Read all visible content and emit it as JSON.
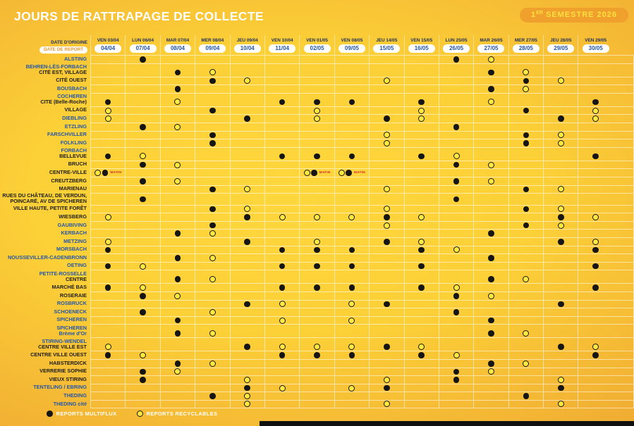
{
  "title": "JOURS DE RATTRAPAGE DE COLLECTE",
  "badge": {
    "prefix": "1",
    "sup": "ER",
    "rest": " SEMESTRE 2026"
  },
  "colors": {
    "blue_label": "#2456a8",
    "navy_header": "#1c2e5e",
    "report_pill_text": "#e8962e",
    "matin_red": "#d7262c",
    "recyclable_yellow": "#ffe93f",
    "multiflux_black": "#151515",
    "badge_bg": "#f0a02c",
    "badge_text": "#ffe03e"
  },
  "table": {
    "origin_label": "DATE D'ORIGINE",
    "report_label": "DATE DE REPORT",
    "matin_label": "MATIN",
    "columns": [
      {
        "day": "VEN 03/04",
        "report": "04/04"
      },
      {
        "day": "LUN 06/04",
        "report": "07/04"
      },
      {
        "day": "MAR 07/04",
        "report": "08/04"
      },
      {
        "day": "MER 08/04",
        "report": "09/04"
      },
      {
        "day": "JEU 09/04",
        "report": "10/04"
      },
      {
        "day": "VEN 10/04",
        "report": "11/04"
      },
      {
        "day": "VEN 01/05",
        "report": "02/05"
      },
      {
        "day": "VEN 08/05",
        "report": "09/05"
      },
      {
        "day": "JEU 14/05",
        "report": "15/05"
      },
      {
        "day": "VEN 15/05",
        "report": "16/05"
      },
      {
        "day": "LUN 25/05",
        "report": "26/05"
      },
      {
        "day": "MAR 26/05",
        "report": "27/05"
      },
      {
        "day": "MER 27/05",
        "report": "28/05"
      },
      {
        "day": "JEU 28/05",
        "report": "29/05"
      },
      {
        "day": "VEN 29/05",
        "report": "30/05"
      }
    ],
    "cell_codes": {
      "M": "report multiflux",
      "R": "report recyclables",
      "P": "recyclables + multiflux, matin"
    },
    "rows": [
      {
        "lines": [
          {
            "t": "ALSTING",
            "c": "blue"
          }
        ],
        "cells": [
          "",
          "M",
          "",
          "",
          "",
          "",
          "",
          "",
          "",
          "",
          "M",
          "R",
          "",
          "",
          ""
        ]
      },
      {
        "lines": [
          {
            "t": "BEHREN-LÈS-FORBACH",
            "c": "blue"
          },
          {
            "t": "CITÉ EST, VILLAGE",
            "c": "black"
          }
        ],
        "h": 19,
        "align": "bottom",
        "cells": [
          "",
          "",
          "M",
          "R",
          "",
          "",
          "",
          "",
          "",
          "",
          "",
          "M",
          "R",
          "",
          ""
        ]
      },
      {
        "lines": [
          {
            "t": "CITÉ OUEST",
            "c": "black"
          }
        ],
        "cells": [
          "",
          "",
          "",
          "M",
          "R",
          "",
          "",
          "",
          "R",
          "",
          "",
          "",
          "M",
          "R",
          ""
        ]
      },
      {
        "lines": [
          {
            "t": "BOUSBACH",
            "c": "blue"
          }
        ],
        "cells": [
          "",
          "",
          "M",
          "",
          "",
          "",
          "",
          "",
          "",
          "",
          "",
          "M",
          "R",
          "",
          ""
        ]
      },
      {
        "lines": [
          {
            "t": "COCHEREN",
            "c": "blue"
          },
          {
            "t": "CITE (Belle-Roche)",
            "c": "black"
          }
        ],
        "h": 19,
        "align": "bottom",
        "cells": [
          "M",
          "",
          "R",
          "",
          "",
          "M",
          "M",
          "M",
          "",
          "M",
          "",
          "R",
          "",
          "",
          "M"
        ]
      },
      {
        "lines": [
          {
            "t": "VILLAGE",
            "c": "black"
          }
        ],
        "cells": [
          "R",
          "",
          "",
          "M",
          "",
          "",
          "R",
          "",
          "",
          "R",
          "",
          "",
          "M",
          "",
          "R"
        ]
      },
      {
        "lines": [
          {
            "t": "DIEBLING",
            "c": "blue"
          }
        ],
        "cells": [
          "R",
          "",
          "",
          "",
          "M",
          "",
          "R",
          "",
          "M",
          "R",
          "",
          "",
          "",
          "M",
          "R"
        ]
      },
      {
        "lines": [
          {
            "t": "ETZLING",
            "c": "blue"
          }
        ],
        "cells": [
          "",
          "M",
          "R",
          "",
          "",
          "",
          "",
          "",
          "",
          "",
          "M",
          "",
          "",
          "",
          ""
        ]
      },
      {
        "lines": [
          {
            "t": "FARSCHVILLER",
            "c": "blue"
          }
        ],
        "cells": [
          "",
          "",
          "",
          "M",
          "",
          "",
          "",
          "",
          "R",
          "",
          "",
          "",
          "M",
          "R",
          ""
        ]
      },
      {
        "lines": [
          {
            "t": "FOLKLING",
            "c": "blue"
          }
        ],
        "cells": [
          "",
          "",
          "",
          "M",
          "",
          "",
          "",
          "",
          "R",
          "",
          "",
          "",
          "M",
          "R",
          ""
        ]
      },
      {
        "lines": [
          {
            "t": "FORBACH",
            "c": "blue"
          },
          {
            "t": "BELLEVUE",
            "c": "black"
          }
        ],
        "h": 19,
        "align": "bottom",
        "cells": [
          "M",
          "R",
          "",
          "",
          "",
          "M",
          "M",
          "M",
          "",
          "M",
          "R",
          "",
          "",
          "",
          "M"
        ]
      },
      {
        "lines": [
          {
            "t": "BRUCH",
            "c": "black"
          }
        ],
        "cells": [
          "",
          "M",
          "R",
          "",
          "",
          "",
          "",
          "",
          "",
          "",
          "M",
          "R",
          "",
          "",
          ""
        ]
      },
      {
        "lines": [
          {
            "t": "CENTRE-VILLE",
            "c": "black"
          }
        ],
        "cells": [
          "P",
          "",
          "",
          "",
          "",
          "",
          "P",
          "P",
          "",
          "",
          "",
          "",
          "",
          "",
          ""
        ]
      },
      {
        "lines": [
          {
            "t": "CREUTZBERG",
            "c": "black"
          }
        ],
        "cells": [
          "",
          "M",
          "R",
          "",
          "",
          "",
          "",
          "",
          "",
          "",
          "M",
          "R",
          "",
          "",
          ""
        ]
      },
      {
        "lines": [
          {
            "t": "MARIENAU",
            "c": "black"
          }
        ],
        "cells": [
          "",
          "",
          "",
          "M",
          "R",
          "",
          "",
          "",
          "R",
          "",
          "",
          "",
          "M",
          "R",
          ""
        ]
      },
      {
        "lines": [
          {
            "t": "RUES DU CHÂTEAU, DE VERDUN,",
            "c": "black"
          },
          {
            "t": "POINCARÉ, AV DE SPICHEREN",
            "c": "black"
          }
        ],
        "h": 16.5,
        "cells": [
          "",
          "M",
          "",
          "",
          "",
          "",
          "",
          "",
          "",
          "",
          "M",
          "",
          "",
          "",
          ""
        ]
      },
      {
        "lines": [
          {
            "t": "VILLE HAUTE, PETITE FORÊT",
            "c": "black"
          }
        ],
        "cells": [
          "",
          "",
          "",
          "M",
          "R",
          "",
          "",
          "",
          "R",
          "",
          "",
          "",
          "M",
          "R",
          ""
        ]
      },
      {
        "lines": [
          {
            "t": "WIESBERG",
            "c": "black"
          }
        ],
        "cells": [
          "R",
          "",
          "",
          "",
          "M",
          "R",
          "R",
          "R",
          "M",
          "R",
          "",
          "",
          "",
          "M",
          "R"
        ]
      },
      {
        "lines": [
          {
            "t": "GAUBIVING",
            "c": "blue"
          }
        ],
        "cells": [
          "",
          "",
          "",
          "M",
          "",
          "",
          "",
          "",
          "R",
          "",
          "",
          "",
          "M",
          "R",
          ""
        ]
      },
      {
        "lines": [
          {
            "t": "KERBACH",
            "c": "blue"
          }
        ],
        "cells": [
          "",
          "",
          "M",
          "R",
          "",
          "",
          "",
          "",
          "",
          "",
          "",
          "M",
          "",
          "",
          ""
        ]
      },
      {
        "lines": [
          {
            "t": "METZING",
            "c": "blue"
          }
        ],
        "cells": [
          "R",
          "",
          "",
          "",
          "M",
          "",
          "R",
          "",
          "M",
          "R",
          "",
          "",
          "",
          "M",
          "R"
        ]
      },
      {
        "lines": [
          {
            "t": "MORSBACH",
            "c": "blue"
          }
        ],
        "cells": [
          "M",
          "",
          "",
          "",
          "",
          "M",
          "M",
          "M",
          "",
          "M",
          "R",
          "",
          "",
          "",
          "M"
        ]
      },
      {
        "lines": [
          {
            "t": "NOUSSEVILLER-CADENBRONN",
            "c": "blue"
          }
        ],
        "cells": [
          "",
          "",
          "M",
          "R",
          "",
          "",
          "",
          "",
          "",
          "",
          "",
          "M",
          "",
          "",
          ""
        ]
      },
      {
        "lines": [
          {
            "t": "OETING",
            "c": "blue"
          }
        ],
        "cells": [
          "M",
          "R",
          "",
          "",
          "",
          "M",
          "M",
          "M",
          "",
          "M",
          "",
          "",
          "",
          "",
          "M"
        ]
      },
      {
        "lines": [
          {
            "t": "PETITE-ROSSELLE",
            "c": "blue"
          },
          {
            "t": "CENTRE",
            "c": "black"
          }
        ],
        "h": 19,
        "align": "bottom",
        "cells": [
          "",
          "",
          "M",
          "R",
          "",
          "",
          "",
          "",
          "",
          "",
          "",
          "M",
          "R",
          "",
          ""
        ]
      },
      {
        "lines": [
          {
            "t": "MARCHÉ BAS",
            "c": "black"
          }
        ],
        "cells": [
          "M",
          "R",
          "",
          "",
          "",
          "M",
          "M",
          "M",
          "",
          "M",
          "R",
          "",
          "",
          "",
          "M"
        ]
      },
      {
        "lines": [
          {
            "t": "ROSERAIE",
            "c": "black"
          }
        ],
        "cells": [
          "",
          "M",
          "R",
          "",
          "",
          "",
          "",
          "",
          "",
          "",
          "M",
          "R",
          "",
          "",
          ""
        ]
      },
      {
        "lines": [
          {
            "t": "ROSBRUCK",
            "c": "blue"
          }
        ],
        "cells": [
          "",
          "",
          "",
          "",
          "M",
          "R",
          "",
          "R",
          "M",
          "",
          "",
          "",
          "",
          "M",
          ""
        ]
      },
      {
        "lines": [
          {
            "t": "SCHOENECK",
            "c": "blue"
          }
        ],
        "cells": [
          "",
          "M",
          "",
          "R",
          "",
          "",
          "",
          "",
          "",
          "",
          "M",
          "",
          "",
          "",
          ""
        ]
      },
      {
        "lines": [
          {
            "t": "SPICHEREN",
            "c": "blue"
          }
        ],
        "cells": [
          "",
          "",
          "M",
          "",
          "",
          "R",
          "",
          "R",
          "",
          "",
          "",
          "M",
          "",
          "",
          ""
        ]
      },
      {
        "lines": [
          {
            "t": "SPICHEREN",
            "c": "blue"
          },
          {
            "t": "Brème d'Or",
            "c": "blue"
          }
        ],
        "h": 19,
        "align": "bottom",
        "cells": [
          "",
          "",
          "M",
          "R",
          "",
          "",
          "",
          "",
          "",
          "",
          "",
          "M",
          "R",
          "",
          ""
        ]
      },
      {
        "lines": [
          {
            "t": "STIRING-WENDEL",
            "c": "blue"
          },
          {
            "t": "CENTRE VILLE EST",
            "c": "black"
          }
        ],
        "h": 19,
        "align": "bottom",
        "cells": [
          "R",
          "",
          "",
          "",
          "M",
          "R",
          "R",
          "R",
          "M",
          "R",
          "",
          "",
          "",
          "M",
          "R"
        ]
      },
      {
        "lines": [
          {
            "t": "CENTRE VILLE OUEST",
            "c": "black"
          }
        ],
        "cells": [
          "M",
          "R",
          "",
          "",
          "",
          "M",
          "M",
          "M",
          "",
          "M",
          "R",
          "",
          "",
          "",
          "M"
        ]
      },
      {
        "lines": [
          {
            "t": "HABSTERDICK",
            "c": "black"
          }
        ],
        "cells": [
          "",
          "",
          "M",
          "R",
          "",
          "",
          "",
          "",
          "",
          "",
          "",
          "M",
          "R",
          "",
          ""
        ]
      },
      {
        "lines": [
          {
            "t": "VERRERIE SOPHIE",
            "c": "black"
          }
        ],
        "cells": [
          "",
          "M",
          "R",
          "",
          "",
          "",
          "",
          "",
          "",
          "",
          "M",
          "R",
          "",
          "",
          ""
        ]
      },
      {
        "lines": [
          {
            "t": "VIEUX STIRING",
            "c": "black"
          }
        ],
        "cells": [
          "",
          "M",
          "",
          "",
          "R",
          "",
          "",
          "",
          "R",
          "",
          "M",
          "",
          "",
          "R",
          ""
        ]
      },
      {
        "lines": [
          {
            "t": "TENTELING / EBRING",
            "c": "blue"
          }
        ],
        "cells": [
          "",
          "",
          "",
          "",
          "M",
          "R",
          "",
          "R",
          "M",
          "",
          "",
          "",
          "",
          "M",
          ""
        ]
      },
      {
        "lines": [
          {
            "t": "THEDING",
            "c": "blue"
          }
        ],
        "cells": [
          "",
          "",
          "",
          "M",
          "R",
          "",
          "",
          "",
          "",
          "",
          "",
          "",
          "M",
          "",
          ""
        ]
      },
      {
        "lines": [
          {
            "t": "THEDING cité",
            "c": "blue"
          }
        ],
        "cells": [
          "",
          "",
          "",
          "",
          "R",
          "",
          "",
          "",
          "R",
          "",
          "",
          "",
          "",
          "R",
          ""
        ]
      }
    ]
  },
  "legend": [
    {
      "type": "M",
      "label": "REPORTS MULTIFLUX"
    },
    {
      "type": "R",
      "label": "REPORTS RECYCLABLES"
    }
  ]
}
